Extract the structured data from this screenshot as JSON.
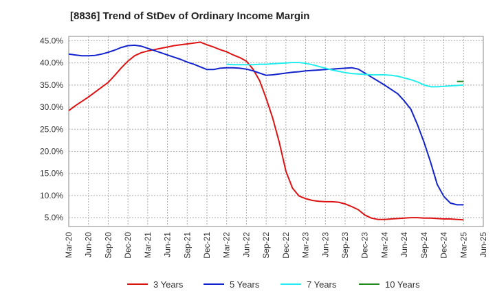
{
  "chart_data": {
    "type": "line",
    "title": "[8836]  Trend of StDev of Ordinary Income Margin",
    "xlabel": "",
    "ylabel": "",
    "x_ticks": [
      "Mar-20",
      "Jun-20",
      "Sep-20",
      "Dec-20",
      "Mar-21",
      "Jun-21",
      "Sep-21",
      "Dec-21",
      "Mar-22",
      "Jun-22",
      "Sep-22",
      "Dec-22",
      "Mar-23",
      "Jun-23",
      "Sep-23",
      "Dec-23",
      "Mar-24",
      "Jun-24",
      "Sep-24",
      "Dec-24",
      "Mar-25",
      "Jun-25"
    ],
    "y_ticks": [
      "5.0%",
      "10.0%",
      "15.0%",
      "20.0%",
      "25.0%",
      "30.0%",
      "35.0%",
      "40.0%",
      "45.0%"
    ],
    "ylim": [
      3.0,
      46.0
    ],
    "grid": true,
    "legend_position": "bottom",
    "series": [
      {
        "name": "3 Years",
        "color": "#dd1111",
        "x": [
          "2020-03",
          "2020-04",
          "2020-05",
          "2020-06",
          "2020-07",
          "2020-08",
          "2020-09",
          "2020-10",
          "2020-11",
          "2020-12",
          "2021-01",
          "2021-02",
          "2021-03",
          "2021-04",
          "2021-05",
          "2021-06",
          "2021-07",
          "2021-08",
          "2021-09",
          "2021-10",
          "2021-11",
          "2021-12",
          "2022-01",
          "2022-02",
          "2022-03",
          "2022-04",
          "2022-05",
          "2022-06",
          "2022-07",
          "2022-08",
          "2022-09",
          "2022-10",
          "2022-11",
          "2022-12",
          "2023-01",
          "2023-02",
          "2023-03",
          "2023-04",
          "2023-05",
          "2023-06",
          "2023-07",
          "2023-08",
          "2023-09",
          "2023-10",
          "2023-11",
          "2023-12",
          "2024-01",
          "2024-02",
          "2024-03",
          "2024-04",
          "2024-05",
          "2024-06",
          "2024-07",
          "2024-08",
          "2024-09",
          "2024-10",
          "2024-11",
          "2024-12",
          "2025-01",
          "2025-02",
          "2025-03"
        ],
        "values": [
          29.2,
          30.3,
          31.3,
          32.3,
          33.4,
          34.5,
          35.6,
          37.2,
          38.9,
          40.4,
          41.6,
          42.3,
          42.7,
          43.0,
          43.3,
          43.6,
          43.9,
          44.1,
          44.3,
          44.5,
          44.7,
          44.1,
          43.6,
          43.0,
          42.5,
          41.8,
          41.2,
          40.4,
          38.6,
          36.0,
          32.0,
          27.5,
          22.0,
          15.5,
          11.7,
          9.9,
          9.3,
          8.9,
          8.7,
          8.6,
          8.6,
          8.5,
          8.1,
          7.5,
          6.8,
          5.6,
          4.9,
          4.6,
          4.6,
          4.7,
          4.8,
          4.9,
          5.0,
          5.0,
          4.9,
          4.9,
          4.8,
          4.7,
          4.7,
          4.6,
          4.5
        ]
      },
      {
        "name": "5 Years",
        "color": "#1122cc",
        "x": [
          "2020-03",
          "2020-04",
          "2020-05",
          "2020-06",
          "2020-07",
          "2020-08",
          "2020-09",
          "2020-10",
          "2020-11",
          "2020-12",
          "2021-01",
          "2021-02",
          "2021-03",
          "2021-04",
          "2021-05",
          "2021-06",
          "2021-07",
          "2021-08",
          "2021-09",
          "2021-10",
          "2021-11",
          "2021-12",
          "2022-01",
          "2022-02",
          "2022-03",
          "2022-04",
          "2022-05",
          "2022-06",
          "2022-07",
          "2022-08",
          "2022-09",
          "2022-10",
          "2022-11",
          "2022-12",
          "2023-01",
          "2023-02",
          "2023-03",
          "2023-04",
          "2023-05",
          "2023-06",
          "2023-07",
          "2023-08",
          "2023-09",
          "2023-10",
          "2023-11",
          "2023-12",
          "2024-01",
          "2024-02",
          "2024-03",
          "2024-04",
          "2024-05",
          "2024-06",
          "2024-07",
          "2024-08",
          "2024-09",
          "2024-10",
          "2024-11",
          "2024-12",
          "2025-01",
          "2025-02",
          "2025-03"
        ],
        "values": [
          42.0,
          41.8,
          41.6,
          41.6,
          41.7,
          42.0,
          42.4,
          42.9,
          43.5,
          43.9,
          44.0,
          43.8,
          43.3,
          42.8,
          42.3,
          41.8,
          41.3,
          40.8,
          40.2,
          39.7,
          39.1,
          38.5,
          38.5,
          38.8,
          38.9,
          38.9,
          38.8,
          38.6,
          38.2,
          37.7,
          37.2,
          37.3,
          37.5,
          37.7,
          37.9,
          38.0,
          38.2,
          38.3,
          38.4,
          38.5,
          38.6,
          38.7,
          38.8,
          38.9,
          38.6,
          37.7,
          36.8,
          35.9,
          35.0,
          34.0,
          33.0,
          31.4,
          29.5,
          26.0,
          22.0,
          17.5,
          12.5,
          9.8,
          8.3,
          7.9,
          7.9
        ]
      },
      {
        "name": "7 Years",
        "color": "#22eeee",
        "x": [
          "2022-03",
          "2022-04",
          "2022-05",
          "2022-06",
          "2022-07",
          "2022-08",
          "2022-09",
          "2022-10",
          "2022-11",
          "2022-12",
          "2023-01",
          "2023-02",
          "2023-03",
          "2023-04",
          "2023-05",
          "2023-06",
          "2023-07",
          "2023-08",
          "2023-09",
          "2023-10",
          "2023-11",
          "2023-12",
          "2024-01",
          "2024-02",
          "2024-03",
          "2024-04",
          "2024-05",
          "2024-06",
          "2024-07",
          "2024-08",
          "2024-09",
          "2024-10",
          "2024-11",
          "2024-12",
          "2025-01",
          "2025-02",
          "2025-03"
        ],
        "values": [
          39.7,
          39.6,
          39.6,
          39.6,
          39.6,
          39.7,
          39.7,
          39.8,
          39.9,
          40.0,
          40.1,
          40.1,
          39.9,
          39.6,
          39.2,
          38.8,
          38.4,
          38.1,
          37.8,
          37.6,
          37.5,
          37.4,
          37.3,
          37.3,
          37.3,
          37.2,
          37.0,
          36.6,
          36.2,
          35.7,
          35.0,
          34.6,
          34.6,
          34.7,
          34.8,
          34.9,
          35.0
        ]
      },
      {
        "name": "10 Years",
        "color": "#228822",
        "x": [
          "2025-02",
          "2025-03"
        ],
        "values": [
          35.8,
          35.8
        ]
      }
    ]
  }
}
